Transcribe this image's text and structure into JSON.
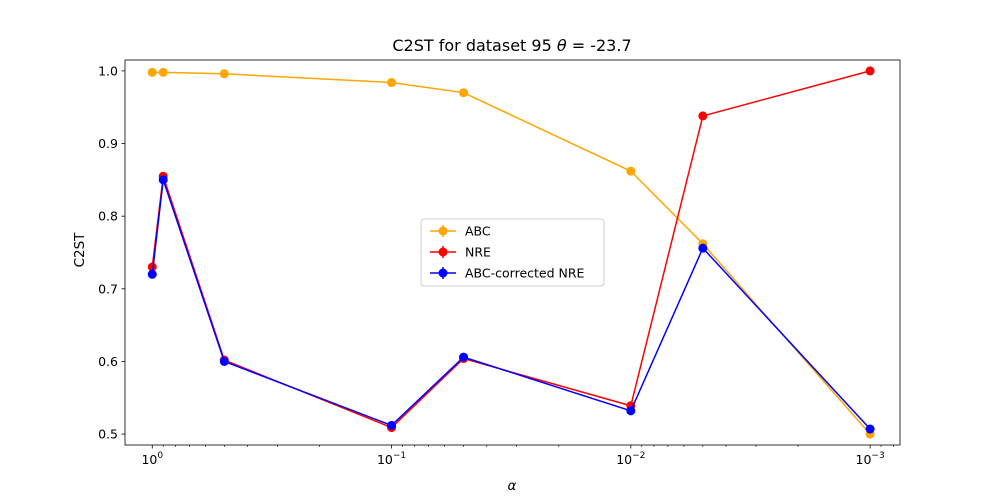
{
  "chart_data": {
    "type": "line",
    "title_prefix": "C2ST for dataset 95 ",
    "title_theta": "θ",
    "title_suffix": " =  -23.7",
    "xlabel": "α",
    "ylabel": "C2ST",
    "x_scale": "log",
    "x_reversed": true,
    "x": [
      1.0,
      0.9,
      0.5,
      0.1,
      0.05,
      0.01,
      0.005,
      0.001
    ],
    "xlim": [
      1.3,
      0.00075
    ],
    "ylim": [
      0.485,
      1.015
    ],
    "x_ticks": [
      {
        "value": 1,
        "base": "10",
        "exp": "0"
      },
      {
        "value": 0.1,
        "base": "10",
        "exp": "−1"
      },
      {
        "value": 0.01,
        "base": "10",
        "exp": "−2"
      },
      {
        "value": 0.001,
        "base": "10",
        "exp": "−3"
      }
    ],
    "y_ticks": [
      "0.5",
      "0.6",
      "0.7",
      "0.8",
      "0.9",
      "1.0"
    ],
    "legend_position": "center",
    "grid": false,
    "series": [
      {
        "name": "ABC",
        "color": "#ffa500",
        "values": [
          0.998,
          0.998,
          0.996,
          0.984,
          0.97,
          0.862,
          0.762,
          0.5
        ]
      },
      {
        "name": "NRE",
        "color": "#ff0000",
        "values": [
          0.73,
          0.855,
          0.602,
          0.509,
          0.604,
          0.539,
          0.938,
          1.0
        ]
      },
      {
        "name": "ABC-corrected NRE",
        "color": "#0000ff",
        "values": [
          0.72,
          0.85,
          0.6,
          0.512,
          0.606,
          0.532,
          0.756,
          0.507
        ]
      }
    ]
  }
}
